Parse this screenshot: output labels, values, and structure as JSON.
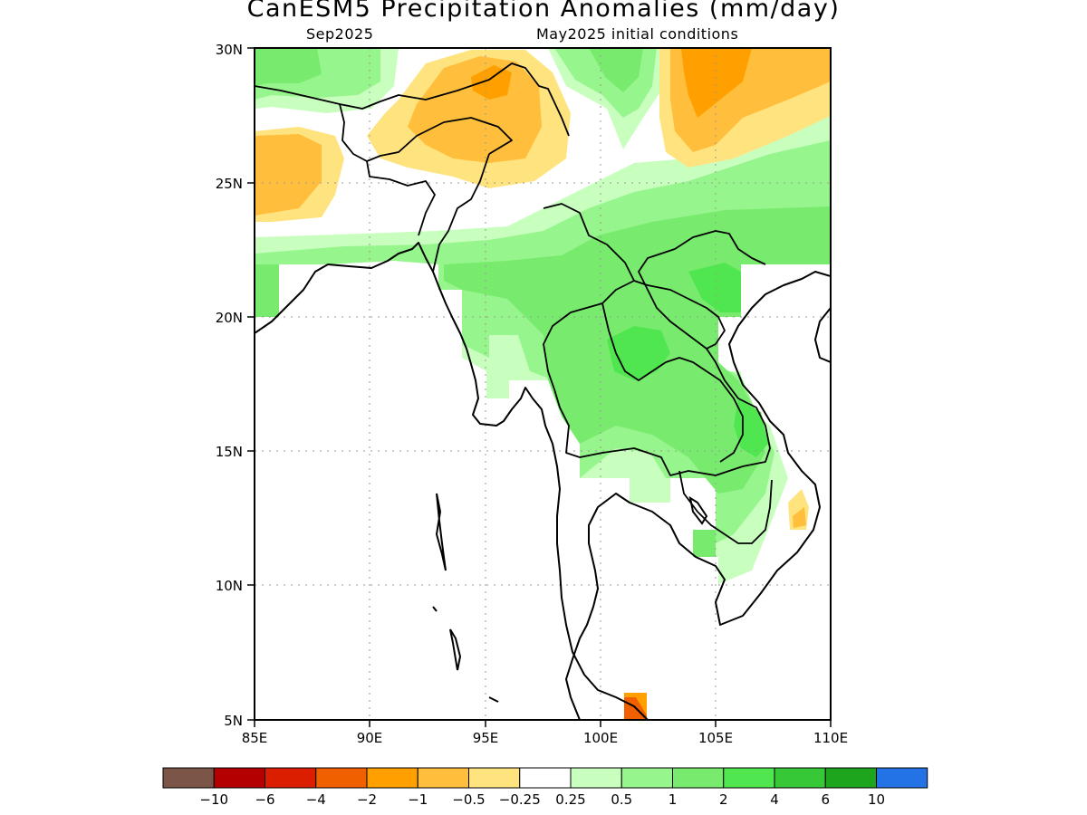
{
  "title": "CanESM5 Precipitation Anomalies (mm/day)",
  "subtitle_left": "Sep2025",
  "subtitle_right": "May2025 initial conditions",
  "map": {
    "lon_range": [
      85,
      110
    ],
    "lat_range": [
      5,
      30
    ],
    "lon_ticks": [
      "85E",
      "90E",
      "95E",
      "100E",
      "105E",
      "110E"
    ],
    "lat_ticks": [
      "5N",
      "10N",
      "15N",
      "20N",
      "25N",
      "30N"
    ],
    "grid_lines": "dotted"
  },
  "colorbar": {
    "colors": [
      "#7a5548",
      "#b40000",
      "#dc1e00",
      "#f05f00",
      "#ff9f00",
      "#ffbe3c",
      "#ffe37f",
      "#ffffff",
      "#c8ffbe",
      "#96f58c",
      "#78eb6e",
      "#50e650",
      "#37c837",
      "#1ea51e",
      "#2373e6"
    ],
    "labels": [
      "−10",
      "−6",
      "−4",
      "−2",
      "−1",
      "−0.5",
      "−0.25",
      "0.25",
      "0.5",
      "1",
      "2",
      "4",
      "6",
      "10"
    ]
  }
}
